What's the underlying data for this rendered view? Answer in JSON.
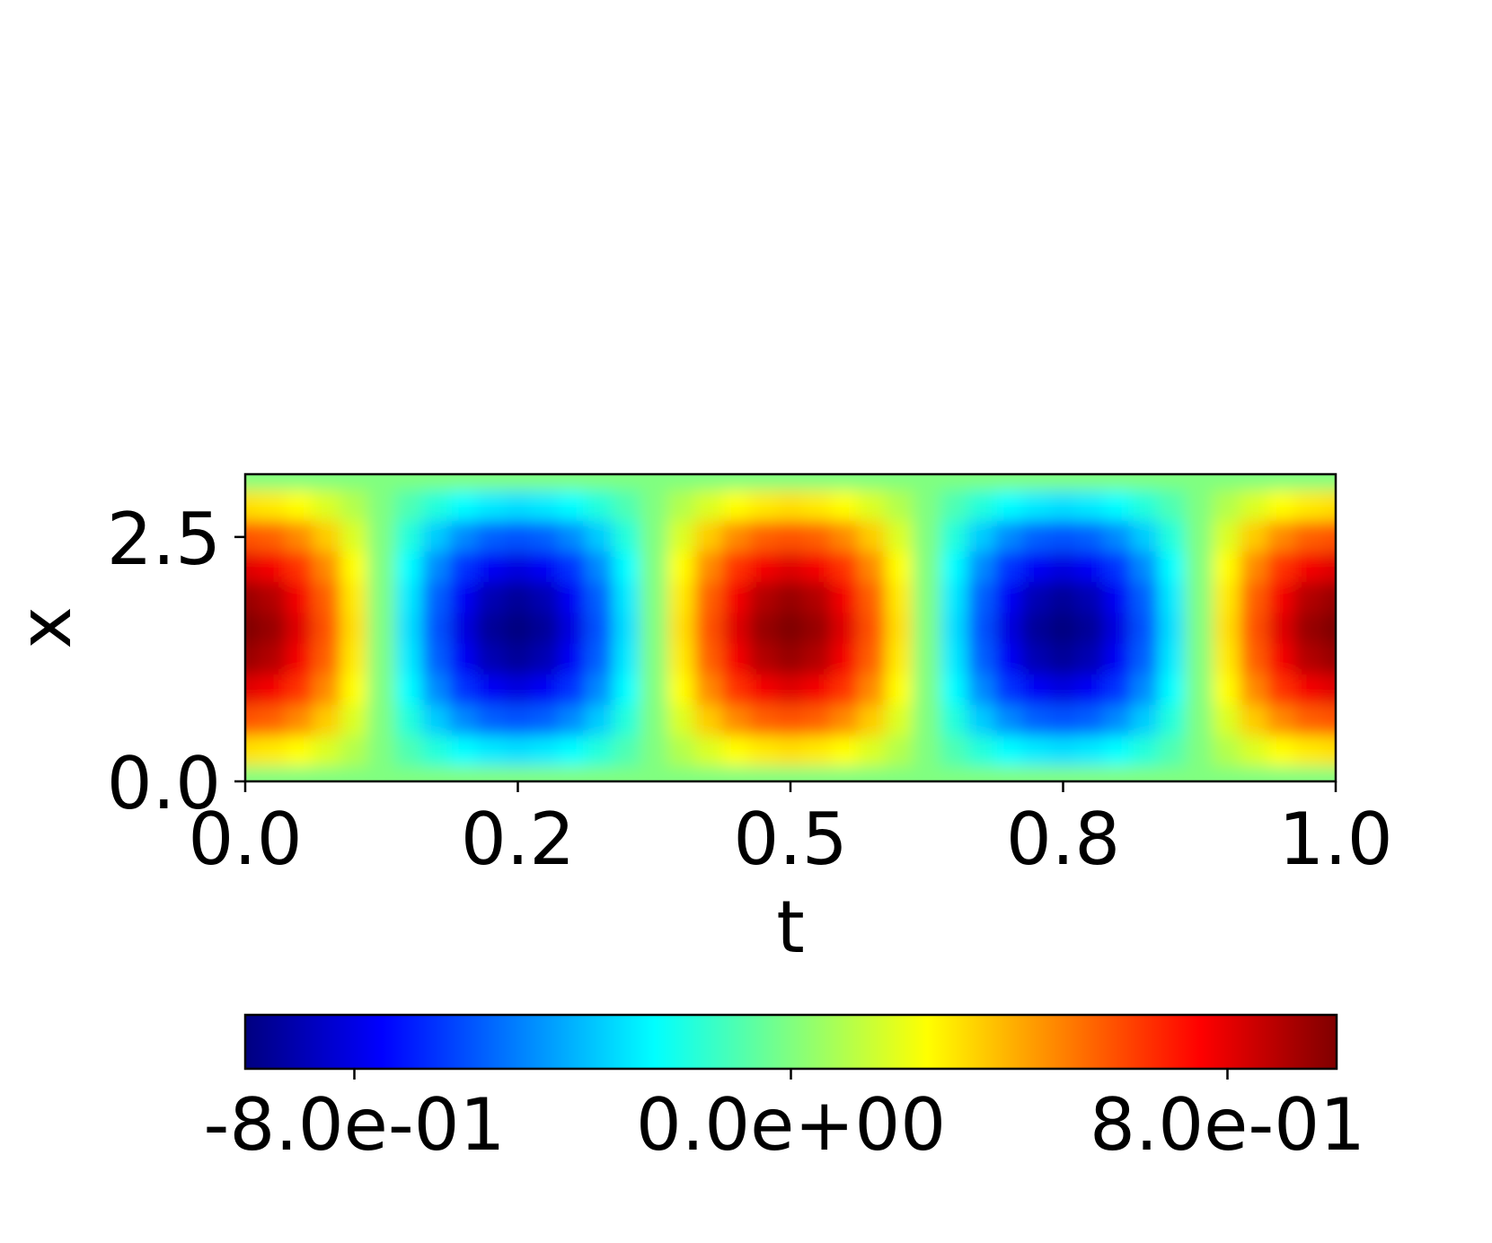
{
  "chart_data": {
    "type": "heatmap",
    "xlabel": "t",
    "ylabel": "x",
    "colormap": "jet",
    "x": [
      0,
      0.025,
      0.05,
      0.075,
      0.1,
      0.125,
      0.15,
      0.175,
      0.2,
      0.225,
      0.25,
      0.275,
      0.3,
      0.325,
      0.35,
      0.375,
      0.4,
      0.425,
      0.45,
      0.475,
      0.5,
      0.525,
      0.55,
      0.575,
      0.6,
      0.625,
      0.65,
      0.675,
      0.7,
      0.725,
      0.75,
      0.775,
      0.8,
      0.825,
      0.85,
      0.875,
      0.9,
      0.925,
      0.95,
      0.975,
      1
    ],
    "y": [
      0,
      0.314,
      0.628,
      0.942,
      1.257,
      1.571,
      1.885,
      2.199,
      2.513,
      2.827,
      3.142
    ],
    "z": [
      [
        0,
        0,
        0,
        0,
        0,
        0,
        0,
        0,
        0,
        0,
        0,
        0,
        0,
        0,
        0,
        0,
        0,
        0,
        0,
        0,
        0,
        0,
        0,
        0,
        0,
        0,
        0,
        0,
        0,
        0,
        0,
        0,
        0,
        0,
        0,
        0,
        0,
        0,
        0,
        0,
        0
      ],
      [
        0.31,
        0.29,
        0.25,
        0.18,
        0.1,
        0,
        -0.1,
        -0.18,
        -0.25,
        -0.29,
        -0.31,
        -0.29,
        -0.25,
        -0.18,
        -0.1,
        0,
        0.1,
        0.18,
        0.25,
        0.29,
        0.31,
        0.29,
        0.25,
        0.18,
        0.1,
        0,
        -0.1,
        -0.18,
        -0.25,
        -0.29,
        -0.31,
        -0.29,
        -0.25,
        -0.18,
        -0.1,
        0,
        0.1,
        0.18,
        0.25,
        0.29,
        0.31
      ],
      [
        0.59,
        0.56,
        0.48,
        0.35,
        0.18,
        0,
        -0.18,
        -0.35,
        -0.48,
        -0.56,
        -0.59,
        -0.56,
        -0.48,
        -0.35,
        -0.18,
        0,
        0.18,
        0.35,
        0.48,
        0.56,
        0.59,
        0.56,
        0.48,
        0.35,
        0.18,
        0,
        -0.18,
        -0.35,
        -0.48,
        -0.56,
        -0.59,
        -0.56,
        -0.48,
        -0.35,
        -0.18,
        0,
        0.18,
        0.35,
        0.48,
        0.56,
        0.59
      ],
      [
        0.81,
        0.77,
        0.65,
        0.48,
        0.25,
        0,
        -0.25,
        -0.48,
        -0.65,
        -0.77,
        -0.81,
        -0.77,
        -0.65,
        -0.48,
        -0.25,
        0,
        0.25,
        0.48,
        0.65,
        0.77,
        0.81,
        0.77,
        0.65,
        0.48,
        0.25,
        0,
        -0.25,
        -0.48,
        -0.65,
        -0.77,
        -0.81,
        -0.77,
        -0.65,
        -0.48,
        -0.25,
        0,
        0.25,
        0.48,
        0.65,
        0.77,
        0.81
      ],
      [
        0.95,
        0.9,
        0.77,
        0.56,
        0.29,
        0,
        -0.29,
        -0.56,
        -0.77,
        -0.9,
        -0.95,
        -0.9,
        -0.77,
        -0.56,
        -0.29,
        0,
        0.29,
        0.56,
        0.77,
        0.9,
        0.95,
        0.9,
        0.77,
        0.56,
        0.29,
        0,
        -0.29,
        -0.56,
        -0.77,
        -0.9,
        -0.95,
        -0.9,
        -0.77,
        -0.56,
        -0.29,
        0,
        0.29,
        0.56,
        0.77,
        0.9,
        0.95
      ],
      [
        1,
        0.95,
        0.81,
        0.59,
        0.31,
        0,
        -0.31,
        -0.59,
        -0.81,
        -0.95,
        -1,
        -0.95,
        -0.81,
        -0.59,
        -0.31,
        0,
        0.31,
        0.59,
        0.81,
        0.95,
        1,
        0.95,
        0.81,
        0.59,
        0.31,
        0,
        -0.31,
        -0.59,
        -0.81,
        -0.95,
        -1,
        -0.95,
        -0.81,
        -0.59,
        -0.31,
        0,
        0.31,
        0.59,
        0.81,
        0.95,
        1
      ],
      [
        0.95,
        0.9,
        0.77,
        0.56,
        0.29,
        0,
        -0.29,
        -0.56,
        -0.77,
        -0.9,
        -0.95,
        -0.9,
        -0.77,
        -0.56,
        -0.29,
        0,
        0.29,
        0.56,
        0.77,
        0.9,
        0.95,
        0.9,
        0.77,
        0.56,
        0.29,
        0,
        -0.29,
        -0.56,
        -0.77,
        -0.9,
        -0.95,
        -0.9,
        -0.77,
        -0.56,
        -0.29,
        0,
        0.29,
        0.56,
        0.77,
        0.9,
        0.95
      ],
      [
        0.81,
        0.77,
        0.65,
        0.48,
        0.25,
        0,
        -0.25,
        -0.48,
        -0.65,
        -0.77,
        -0.81,
        -0.77,
        -0.65,
        -0.48,
        -0.25,
        0,
        0.25,
        0.48,
        0.65,
        0.77,
        0.81,
        0.77,
        0.65,
        0.48,
        0.25,
        0,
        -0.25,
        -0.48,
        -0.65,
        -0.77,
        -0.81,
        -0.77,
        -0.65,
        -0.48,
        -0.25,
        0,
        0.25,
        0.48,
        0.65,
        0.77,
        0.81
      ],
      [
        0.59,
        0.56,
        0.48,
        0.35,
        0.18,
        0,
        -0.18,
        -0.35,
        -0.48,
        -0.56,
        -0.59,
        -0.56,
        -0.48,
        -0.35,
        -0.18,
        0,
        0.18,
        0.35,
        0.48,
        0.56,
        0.59,
        0.56,
        0.48,
        0.35,
        0.18,
        0,
        -0.18,
        -0.35,
        -0.48,
        -0.56,
        -0.59,
        -0.56,
        -0.48,
        -0.35,
        -0.18,
        0,
        0.18,
        0.35,
        0.48,
        0.56,
        0.59
      ],
      [
        0.31,
        0.29,
        0.25,
        0.18,
        0.1,
        0,
        -0.1,
        -0.18,
        -0.25,
        -0.29,
        -0.31,
        -0.29,
        -0.25,
        -0.18,
        -0.1,
        0,
        0.1,
        0.18,
        0.25,
        0.29,
        0.31,
        0.29,
        0.25,
        0.18,
        0.1,
        0,
        -0.1,
        -0.18,
        -0.25,
        -0.29,
        -0.31,
        -0.29,
        -0.25,
        -0.18,
        -0.1,
        0,
        0.1,
        0.18,
        0.25,
        0.29,
        0.31
      ],
      [
        0,
        0,
        0,
        0,
        0,
        0,
        0,
        0,
        0,
        0,
        0,
        0,
        0,
        0,
        0,
        0,
        0,
        0,
        0,
        0,
        0,
        0,
        0,
        0,
        0,
        0,
        0,
        0,
        0,
        0,
        0,
        0,
        0,
        0,
        0,
        0,
        0,
        0,
        0,
        0,
        0
      ]
    ],
    "xlim": [
      0,
      1
    ],
    "ylim": [
      0,
      3.142
    ],
    "xticks": [
      {
        "value": 0,
        "label": "0.0"
      },
      {
        "value": 0.25,
        "label": "0.2"
      },
      0.5,
      {
        "value": 0.75,
        "label": "0.8"
      },
      {
        "value": 1,
        "label": "1.0"
      }
    ],
    "yticks": [
      {
        "value": 0,
        "label": "0.0"
      },
      2.5
    ],
    "clim": [
      -1,
      1
    ],
    "colorbar_ticks": [
      {
        "value": -0.8,
        "label": "-8.0e-01"
      },
      {
        "value": 0,
        "label": "0.0e+00"
      },
      {
        "value": 0.8,
        "label": "8.0e-01"
      }
    ]
  }
}
